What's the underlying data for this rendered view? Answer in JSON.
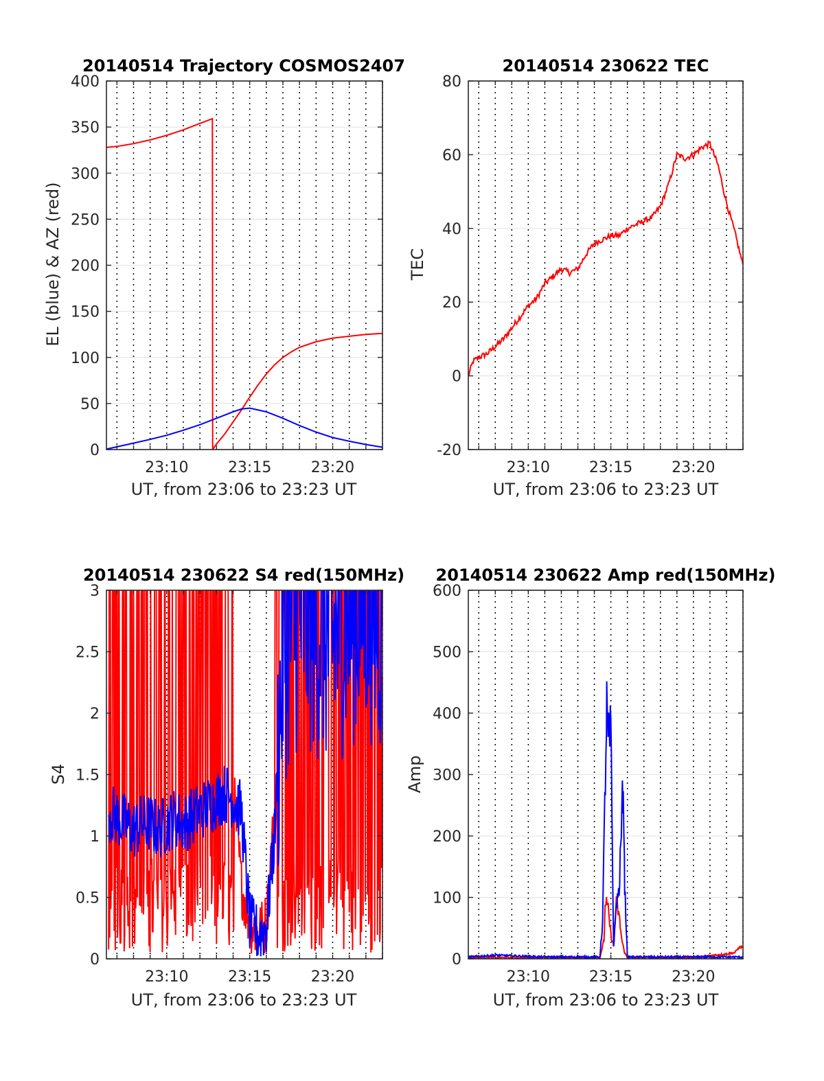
{
  "chart_data": [
    {
      "id": "traj",
      "type": "line",
      "title": "20140514 Trajectory COSMOS2407",
      "xlabel": "UT, from 23:06 to 23:23 UT",
      "ylabel": "EL (blue) & AZ (red)",
      "xlim": [
        "23:06:22",
        "23:23:00"
      ],
      "ylim": [
        0,
        400
      ],
      "yticks": [
        0,
        50,
        100,
        150,
        200,
        250,
        300,
        350,
        400
      ],
      "xticklabels": [
        "23:10",
        "23:15",
        "23:20"
      ],
      "grid": "dotted vertical every 1 min, horizontal at y ticks",
      "series": [
        {
          "color": "#ff0000",
          "x": [
            "23:06:22",
            "23:07",
            "23:08",
            "23:09",
            "23:10",
            "23:11",
            "23:12",
            "23:12:45",
            "23:12:46",
            "23:13",
            "23:13:30",
            "23:14",
            "23:14:30",
            "23:15",
            "23:15:30",
            "23:16",
            "23:16:30",
            "23:17",
            "23:17:30",
            "23:18",
            "23:19",
            "23:20",
            "23:21",
            "23:22",
            "23:23"
          ],
          "values": [
            328,
            329,
            332,
            336,
            341,
            347,
            354,
            359,
            0,
            6,
            17,
            30,
            43,
            57,
            70,
            82,
            92,
            100,
            106,
            111,
            117,
            121,
            123,
            125,
            126
          ]
        },
        {
          "color": "#0000ff",
          "x": [
            "23:06:22",
            "23:07",
            "23:08",
            "23:09",
            "23:10",
            "23:11",
            "23:12",
            "23:13",
            "23:14",
            "23:14:30",
            "23:15",
            "23:16",
            "23:17",
            "23:18",
            "23:19",
            "23:20",
            "23:21",
            "23:22",
            "23:23"
          ],
          "values": [
            0.5,
            3,
            7,
            11,
            15.5,
            21,
            27,
            34,
            41,
            44,
            45,
            41,
            34,
            26,
            19,
            13,
            9,
            5.5,
            2.5
          ]
        }
      ]
    },
    {
      "id": "tec",
      "type": "line",
      "title": "20140514 230622 TEC",
      "xlabel": "UT, from 23:06 to 23:23 UT",
      "ylabel": "TEC",
      "xlim": [
        "23:06:22",
        "23:23:00"
      ],
      "ylim": [
        -20,
        80
      ],
      "yticks": [
        -20,
        0,
        20,
        40,
        60,
        80
      ],
      "xticklabels": [
        "23:10",
        "23:15",
        "23:20"
      ],
      "series": [
        {
          "color": "#ff0000",
          "x": [
            "23:06:22",
            "23:06:40",
            "23:07",
            "23:07:30",
            "23:08",
            "23:08:30",
            "23:09",
            "23:09:30",
            "23:10",
            "23:10:30",
            "23:11",
            "23:11:30",
            "23:12",
            "23:12:30",
            "23:13",
            "23:13:30",
            "23:14",
            "23:14:30",
            "23:15",
            "23:15:30",
            "23:16",
            "23:16:30",
            "23:17",
            "23:17:30",
            "23:18",
            "23:18:30",
            "23:19",
            "23:19:30",
            "23:20",
            "23:20:30",
            "23:21",
            "23:21:30",
            "23:22",
            "23:22:30",
            "23:23"
          ],
          "values": [
            0,
            4,
            5,
            6,
            8,
            10,
            13,
            16,
            19,
            21,
            25,
            27,
            29,
            28,
            29,
            33,
            36,
            37,
            38,
            38,
            40,
            41,
            42,
            43,
            46,
            52,
            60,
            59,
            60,
            62,
            63,
            57,
            47,
            39,
            30
          ]
        }
      ]
    },
    {
      "id": "s4",
      "type": "line",
      "title": "20140514 230622 S4 red(150MHz)",
      "xlabel": "UT, from 23:06 to 23:23 UT",
      "ylabel": "S4",
      "xlim": [
        "23:06:22",
        "23:23:00"
      ],
      "ylim": [
        0,
        3
      ],
      "yticks": [
        0,
        0.5,
        1,
        1.5,
        2,
        2.5,
        3
      ],
      "xticklabels": [
        "23:10",
        "23:15",
        "23:20"
      ],
      "series": [
        {
          "color": "#ff0000",
          "x": [
            "23:06:30",
            "23:07",
            "23:07:30",
            "23:08",
            "23:08:30",
            "23:09",
            "23:09:30",
            "23:10",
            "23:10:30",
            "23:11",
            "23:11:30",
            "23:12",
            "23:12:30",
            "23:13",
            "23:13:30",
            "23:14",
            "23:14:30",
            "23:15",
            "23:15:30",
            "23:16",
            "23:16:30",
            "23:17",
            "23:18",
            "23:19",
            "23:20",
            "23:21",
            "23:22",
            "23:23"
          ],
          "values": [
            1.8,
            2.3,
            1.9,
            2.2,
            1.7,
            2.0,
            1.6,
            1.9,
            1.8,
            1.7,
            1.6,
            1.7,
            1.6,
            1.4,
            1.5,
            1.4,
            0.6,
            0.3,
            0.2,
            0.3,
            1.2,
            2.8,
            2.9,
            3.0,
            2.6,
            2.4,
            2.5,
            2.3
          ]
        },
        {
          "color": "#0000ff",
          "x": [
            "23:06:30",
            "23:07",
            "23:07:30",
            "23:08",
            "23:08:30",
            "23:09",
            "23:09:30",
            "23:10",
            "23:10:30",
            "23:11",
            "23:11:30",
            "23:12",
            "23:12:30",
            "23:13",
            "23:13:30",
            "23:14",
            "23:14:30",
            "23:15",
            "23:15:30",
            "23:16",
            "23:16:30",
            "23:17",
            "23:18",
            "23:19",
            "23:20",
            "23:21",
            "23:22",
            "23:23"
          ],
          "values": [
            1.2,
            1.15,
            1.1,
            1.05,
            1.1,
            1.1,
            1.05,
            1.1,
            1.15,
            1.1,
            1.15,
            1.2,
            1.25,
            1.3,
            1.35,
            1.3,
            1.2,
            0.3,
            0.2,
            0.25,
            1.0,
            2.5,
            2.8,
            2.7,
            2.6,
            2.8,
            2.9,
            2.7
          ]
        }
      ]
    },
    {
      "id": "amp",
      "type": "line",
      "title": "20140514 230622 Amp red(150MHz)",
      "xlabel": "UT, from 23:06 to 23:23 UT",
      "ylabel": "Amp",
      "xlim": [
        "23:06:22",
        "23:23:00"
      ],
      "ylim": [
        0,
        600
      ],
      "yticks": [
        0,
        100,
        200,
        300,
        400,
        500,
        600
      ],
      "xticklabels": [
        "23:10",
        "23:15",
        "23:20"
      ],
      "series": [
        {
          "color": "#ff0000",
          "x": [
            "23:06:22",
            "23:14:20",
            "23:14:35",
            "23:14:40",
            "23:14:50",
            "23:15",
            "23:15:10",
            "23:15:20",
            "23:15:30",
            "23:15:40",
            "23:15:50",
            "23:16",
            "23:20",
            "23:21",
            "23:22",
            "23:22:30",
            "23:22:45",
            "23:23"
          ],
          "values": [
            2,
            2,
            30,
            95,
            80,
            40,
            20,
            90,
            70,
            30,
            10,
            2,
            2,
            5,
            8,
            10,
            18,
            20
          ]
        },
        {
          "color": "#0000ff",
          "x": [
            "23:06:22",
            "23:07",
            "23:08",
            "23:09",
            "23:10",
            "23:11",
            "23:12",
            "23:13",
            "23:14",
            "23:14:20",
            "23:14:30",
            "23:14:40",
            "23:14:45",
            "23:14:50",
            "23:15",
            "23:15:05",
            "23:15:10",
            "23:15:20",
            "23:15:30",
            "23:15:40",
            "23:15:45",
            "23:15:50",
            "23:16",
            "23:17",
            "23:18",
            "23:19",
            "23:20",
            "23:21",
            "23:22",
            "23:23"
          ],
          "values": [
            3,
            4,
            6,
            5,
            4,
            3,
            3,
            3,
            3,
            3,
            60,
            300,
            405,
            350,
            365,
            200,
            20,
            90,
            110,
            230,
            290,
            120,
            3,
            3,
            3,
            3,
            3,
            3,
            3,
            3
          ]
        }
      ]
    }
  ]
}
